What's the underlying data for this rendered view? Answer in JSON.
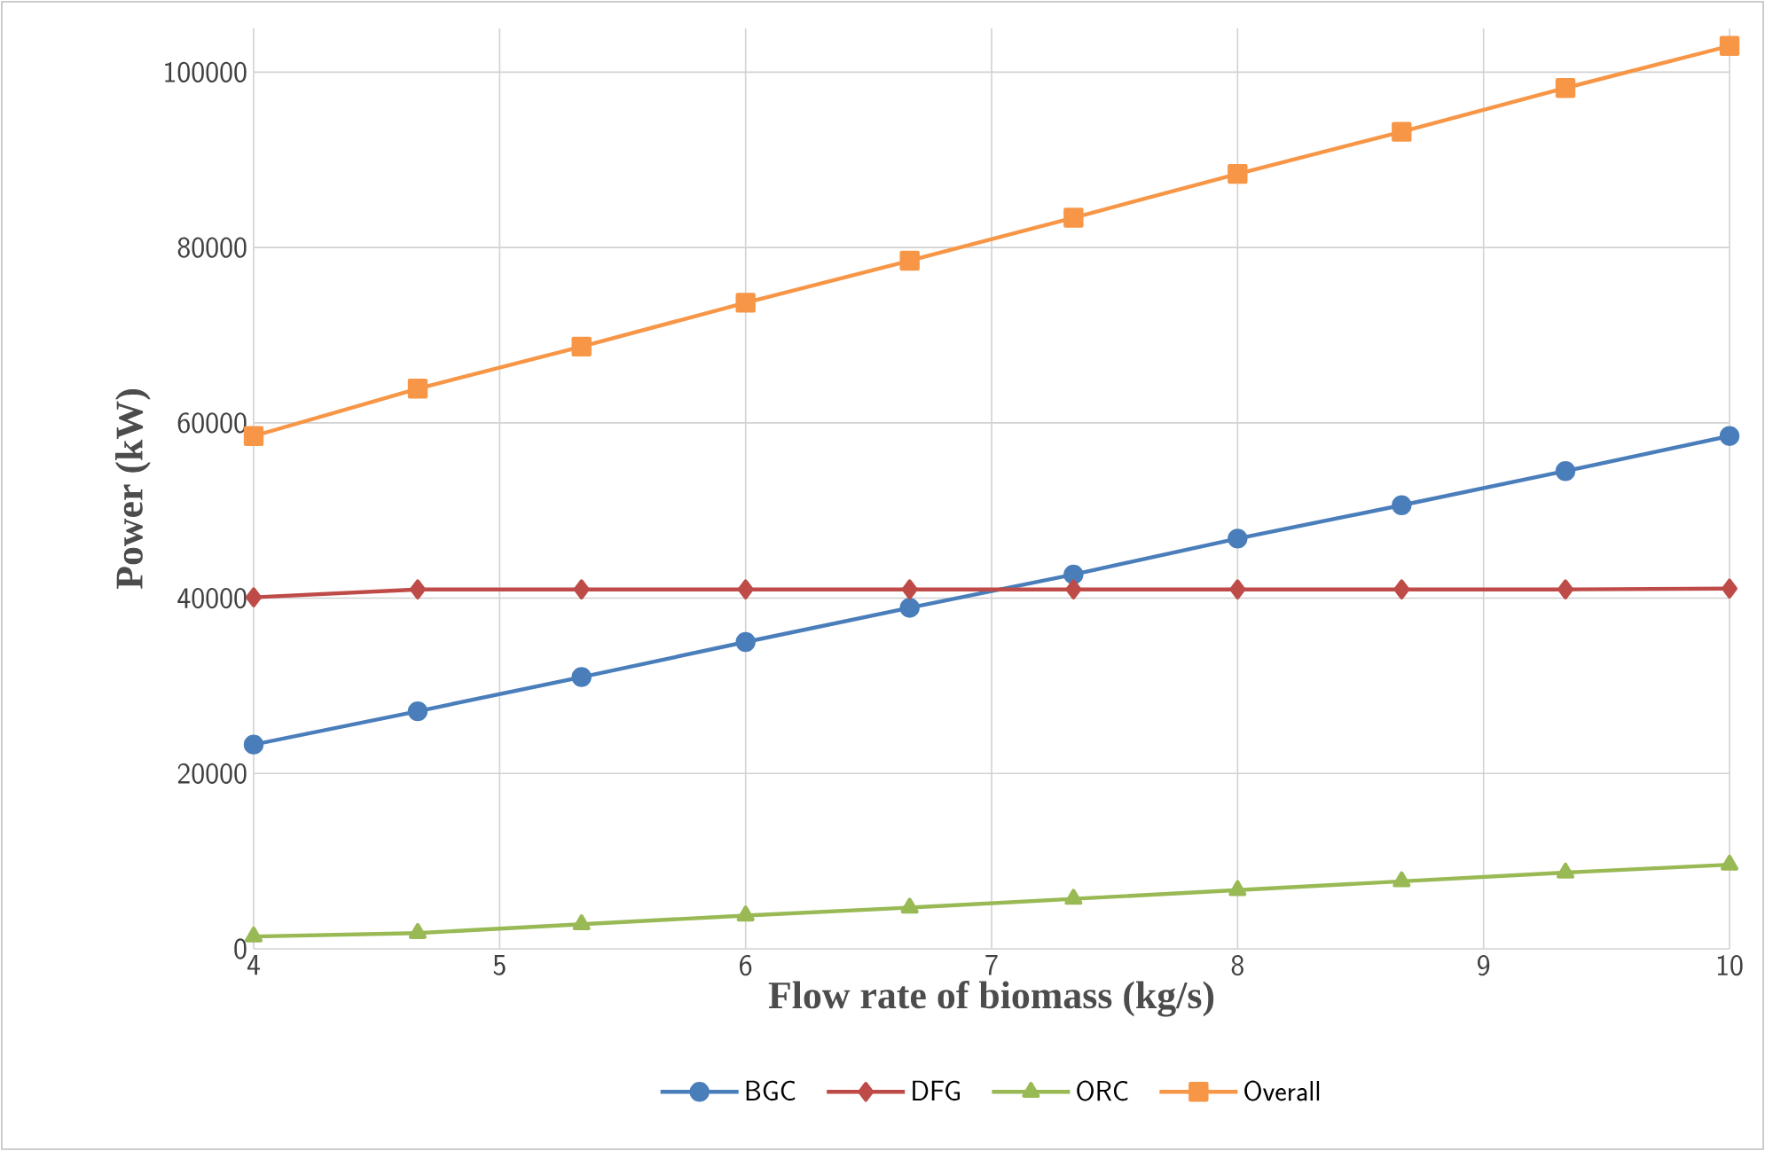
{
  "chart_data": {
    "type": "line",
    "xlabel": "Flow rate of biomass (kg/s)",
    "ylabel": "Power (kW)",
    "x": [
      4,
      4.667,
      5.333,
      6,
      6.667,
      7.333,
      8,
      8.667,
      9.333,
      10
    ],
    "series": [
      {
        "name": "BGC",
        "color": "#4a7ebb",
        "marker": "circle",
        "values": [
          23300,
          27100,
          31000,
          35000,
          38900,
          42700,
          46800,
          50600,
          54500,
          58500
        ]
      },
      {
        "name": "DFG",
        "color": "#be4b48",
        "marker": "diamond",
        "values": [
          40100,
          41000,
          41000,
          41000,
          41000,
          41000,
          41000,
          41000,
          41000,
          41100
        ]
      },
      {
        "name": "ORC",
        "color": "#98b954",
        "marker": "triangle",
        "values": [
          1400,
          1800,
          2800,
          3800,
          4700,
          5700,
          6700,
          7700,
          8700,
          9600
        ]
      },
      {
        "name": "Overall",
        "color": "#f79646",
        "marker": "square",
        "values": [
          58500,
          63900,
          68700,
          73700,
          78500,
          83400,
          88400,
          93200,
          98200,
          103000
        ]
      }
    ],
    "xlim": [
      4,
      10
    ],
    "ylim": [
      0,
      105000
    ],
    "xticks": [
      4,
      5,
      6,
      7,
      8,
      9,
      10
    ],
    "yticks": [
      0,
      20000,
      40000,
      60000,
      80000,
      100000
    ],
    "grid": true,
    "legend": "bottom",
    "line_style": "solid"
  }
}
